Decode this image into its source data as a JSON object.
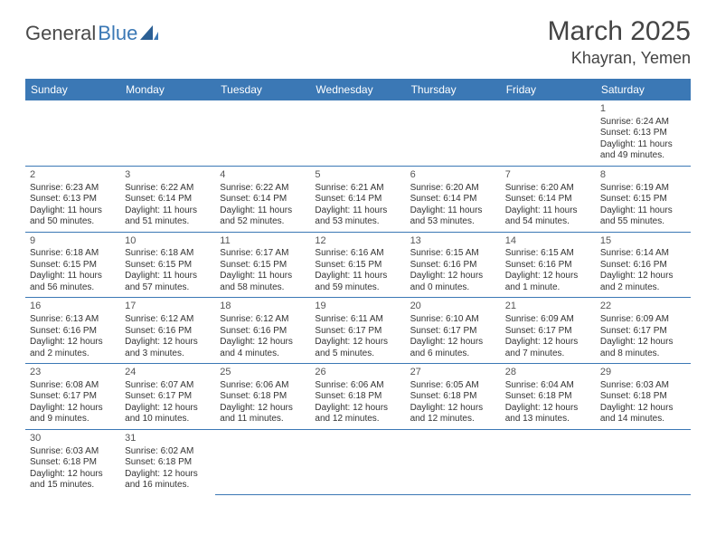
{
  "logo": {
    "part1": "General",
    "part2": "Blue"
  },
  "title": "March 2025",
  "location": "Khayran, Yemen",
  "colors": {
    "header_bg": "#3b78b5",
    "header_fg": "#ffffff",
    "border": "#3b78b5",
    "text": "#333333",
    "logo_gray": "#4a4a4a",
    "logo_blue": "#3b78b5"
  },
  "weekdays": [
    "Sunday",
    "Monday",
    "Tuesday",
    "Wednesday",
    "Thursday",
    "Friday",
    "Saturday"
  ],
  "weeks": [
    [
      null,
      null,
      null,
      null,
      null,
      null,
      {
        "n": "1",
        "sunrise": "Sunrise: 6:24 AM",
        "sunset": "Sunset: 6:13 PM",
        "daylight": "Daylight: 11 hours and 49 minutes."
      }
    ],
    [
      {
        "n": "2",
        "sunrise": "Sunrise: 6:23 AM",
        "sunset": "Sunset: 6:13 PM",
        "daylight": "Daylight: 11 hours and 50 minutes."
      },
      {
        "n": "3",
        "sunrise": "Sunrise: 6:22 AM",
        "sunset": "Sunset: 6:14 PM",
        "daylight": "Daylight: 11 hours and 51 minutes."
      },
      {
        "n": "4",
        "sunrise": "Sunrise: 6:22 AM",
        "sunset": "Sunset: 6:14 PM",
        "daylight": "Daylight: 11 hours and 52 minutes."
      },
      {
        "n": "5",
        "sunrise": "Sunrise: 6:21 AM",
        "sunset": "Sunset: 6:14 PM",
        "daylight": "Daylight: 11 hours and 53 minutes."
      },
      {
        "n": "6",
        "sunrise": "Sunrise: 6:20 AM",
        "sunset": "Sunset: 6:14 PM",
        "daylight": "Daylight: 11 hours and 53 minutes."
      },
      {
        "n": "7",
        "sunrise": "Sunrise: 6:20 AM",
        "sunset": "Sunset: 6:14 PM",
        "daylight": "Daylight: 11 hours and 54 minutes."
      },
      {
        "n": "8",
        "sunrise": "Sunrise: 6:19 AM",
        "sunset": "Sunset: 6:15 PM",
        "daylight": "Daylight: 11 hours and 55 minutes."
      }
    ],
    [
      {
        "n": "9",
        "sunrise": "Sunrise: 6:18 AM",
        "sunset": "Sunset: 6:15 PM",
        "daylight": "Daylight: 11 hours and 56 minutes."
      },
      {
        "n": "10",
        "sunrise": "Sunrise: 6:18 AM",
        "sunset": "Sunset: 6:15 PM",
        "daylight": "Daylight: 11 hours and 57 minutes."
      },
      {
        "n": "11",
        "sunrise": "Sunrise: 6:17 AM",
        "sunset": "Sunset: 6:15 PM",
        "daylight": "Daylight: 11 hours and 58 minutes."
      },
      {
        "n": "12",
        "sunrise": "Sunrise: 6:16 AM",
        "sunset": "Sunset: 6:15 PM",
        "daylight": "Daylight: 11 hours and 59 minutes."
      },
      {
        "n": "13",
        "sunrise": "Sunrise: 6:15 AM",
        "sunset": "Sunset: 6:16 PM",
        "daylight": "Daylight: 12 hours and 0 minutes."
      },
      {
        "n": "14",
        "sunrise": "Sunrise: 6:15 AM",
        "sunset": "Sunset: 6:16 PM",
        "daylight": "Daylight: 12 hours and 1 minute."
      },
      {
        "n": "15",
        "sunrise": "Sunrise: 6:14 AM",
        "sunset": "Sunset: 6:16 PM",
        "daylight": "Daylight: 12 hours and 2 minutes."
      }
    ],
    [
      {
        "n": "16",
        "sunrise": "Sunrise: 6:13 AM",
        "sunset": "Sunset: 6:16 PM",
        "daylight": "Daylight: 12 hours and 2 minutes."
      },
      {
        "n": "17",
        "sunrise": "Sunrise: 6:12 AM",
        "sunset": "Sunset: 6:16 PM",
        "daylight": "Daylight: 12 hours and 3 minutes."
      },
      {
        "n": "18",
        "sunrise": "Sunrise: 6:12 AM",
        "sunset": "Sunset: 6:16 PM",
        "daylight": "Daylight: 12 hours and 4 minutes."
      },
      {
        "n": "19",
        "sunrise": "Sunrise: 6:11 AM",
        "sunset": "Sunset: 6:17 PM",
        "daylight": "Daylight: 12 hours and 5 minutes."
      },
      {
        "n": "20",
        "sunrise": "Sunrise: 6:10 AM",
        "sunset": "Sunset: 6:17 PM",
        "daylight": "Daylight: 12 hours and 6 minutes."
      },
      {
        "n": "21",
        "sunrise": "Sunrise: 6:09 AM",
        "sunset": "Sunset: 6:17 PM",
        "daylight": "Daylight: 12 hours and 7 minutes."
      },
      {
        "n": "22",
        "sunrise": "Sunrise: 6:09 AM",
        "sunset": "Sunset: 6:17 PM",
        "daylight": "Daylight: 12 hours and 8 minutes."
      }
    ],
    [
      {
        "n": "23",
        "sunrise": "Sunrise: 6:08 AM",
        "sunset": "Sunset: 6:17 PM",
        "daylight": "Daylight: 12 hours and 9 minutes."
      },
      {
        "n": "24",
        "sunrise": "Sunrise: 6:07 AM",
        "sunset": "Sunset: 6:17 PM",
        "daylight": "Daylight: 12 hours and 10 minutes."
      },
      {
        "n": "25",
        "sunrise": "Sunrise: 6:06 AM",
        "sunset": "Sunset: 6:18 PM",
        "daylight": "Daylight: 12 hours and 11 minutes."
      },
      {
        "n": "26",
        "sunrise": "Sunrise: 6:06 AM",
        "sunset": "Sunset: 6:18 PM",
        "daylight": "Daylight: 12 hours and 12 minutes."
      },
      {
        "n": "27",
        "sunrise": "Sunrise: 6:05 AM",
        "sunset": "Sunset: 6:18 PM",
        "daylight": "Daylight: 12 hours and 12 minutes."
      },
      {
        "n": "28",
        "sunrise": "Sunrise: 6:04 AM",
        "sunset": "Sunset: 6:18 PM",
        "daylight": "Daylight: 12 hours and 13 minutes."
      },
      {
        "n": "29",
        "sunrise": "Sunrise: 6:03 AM",
        "sunset": "Sunset: 6:18 PM",
        "daylight": "Daylight: 12 hours and 14 minutes."
      }
    ],
    [
      {
        "n": "30",
        "sunrise": "Sunrise: 6:03 AM",
        "sunset": "Sunset: 6:18 PM",
        "daylight": "Daylight: 12 hours and 15 minutes."
      },
      {
        "n": "31",
        "sunrise": "Sunrise: 6:02 AM",
        "sunset": "Sunset: 6:18 PM",
        "daylight": "Daylight: 12 hours and 16 minutes."
      },
      null,
      null,
      null,
      null,
      null
    ]
  ]
}
